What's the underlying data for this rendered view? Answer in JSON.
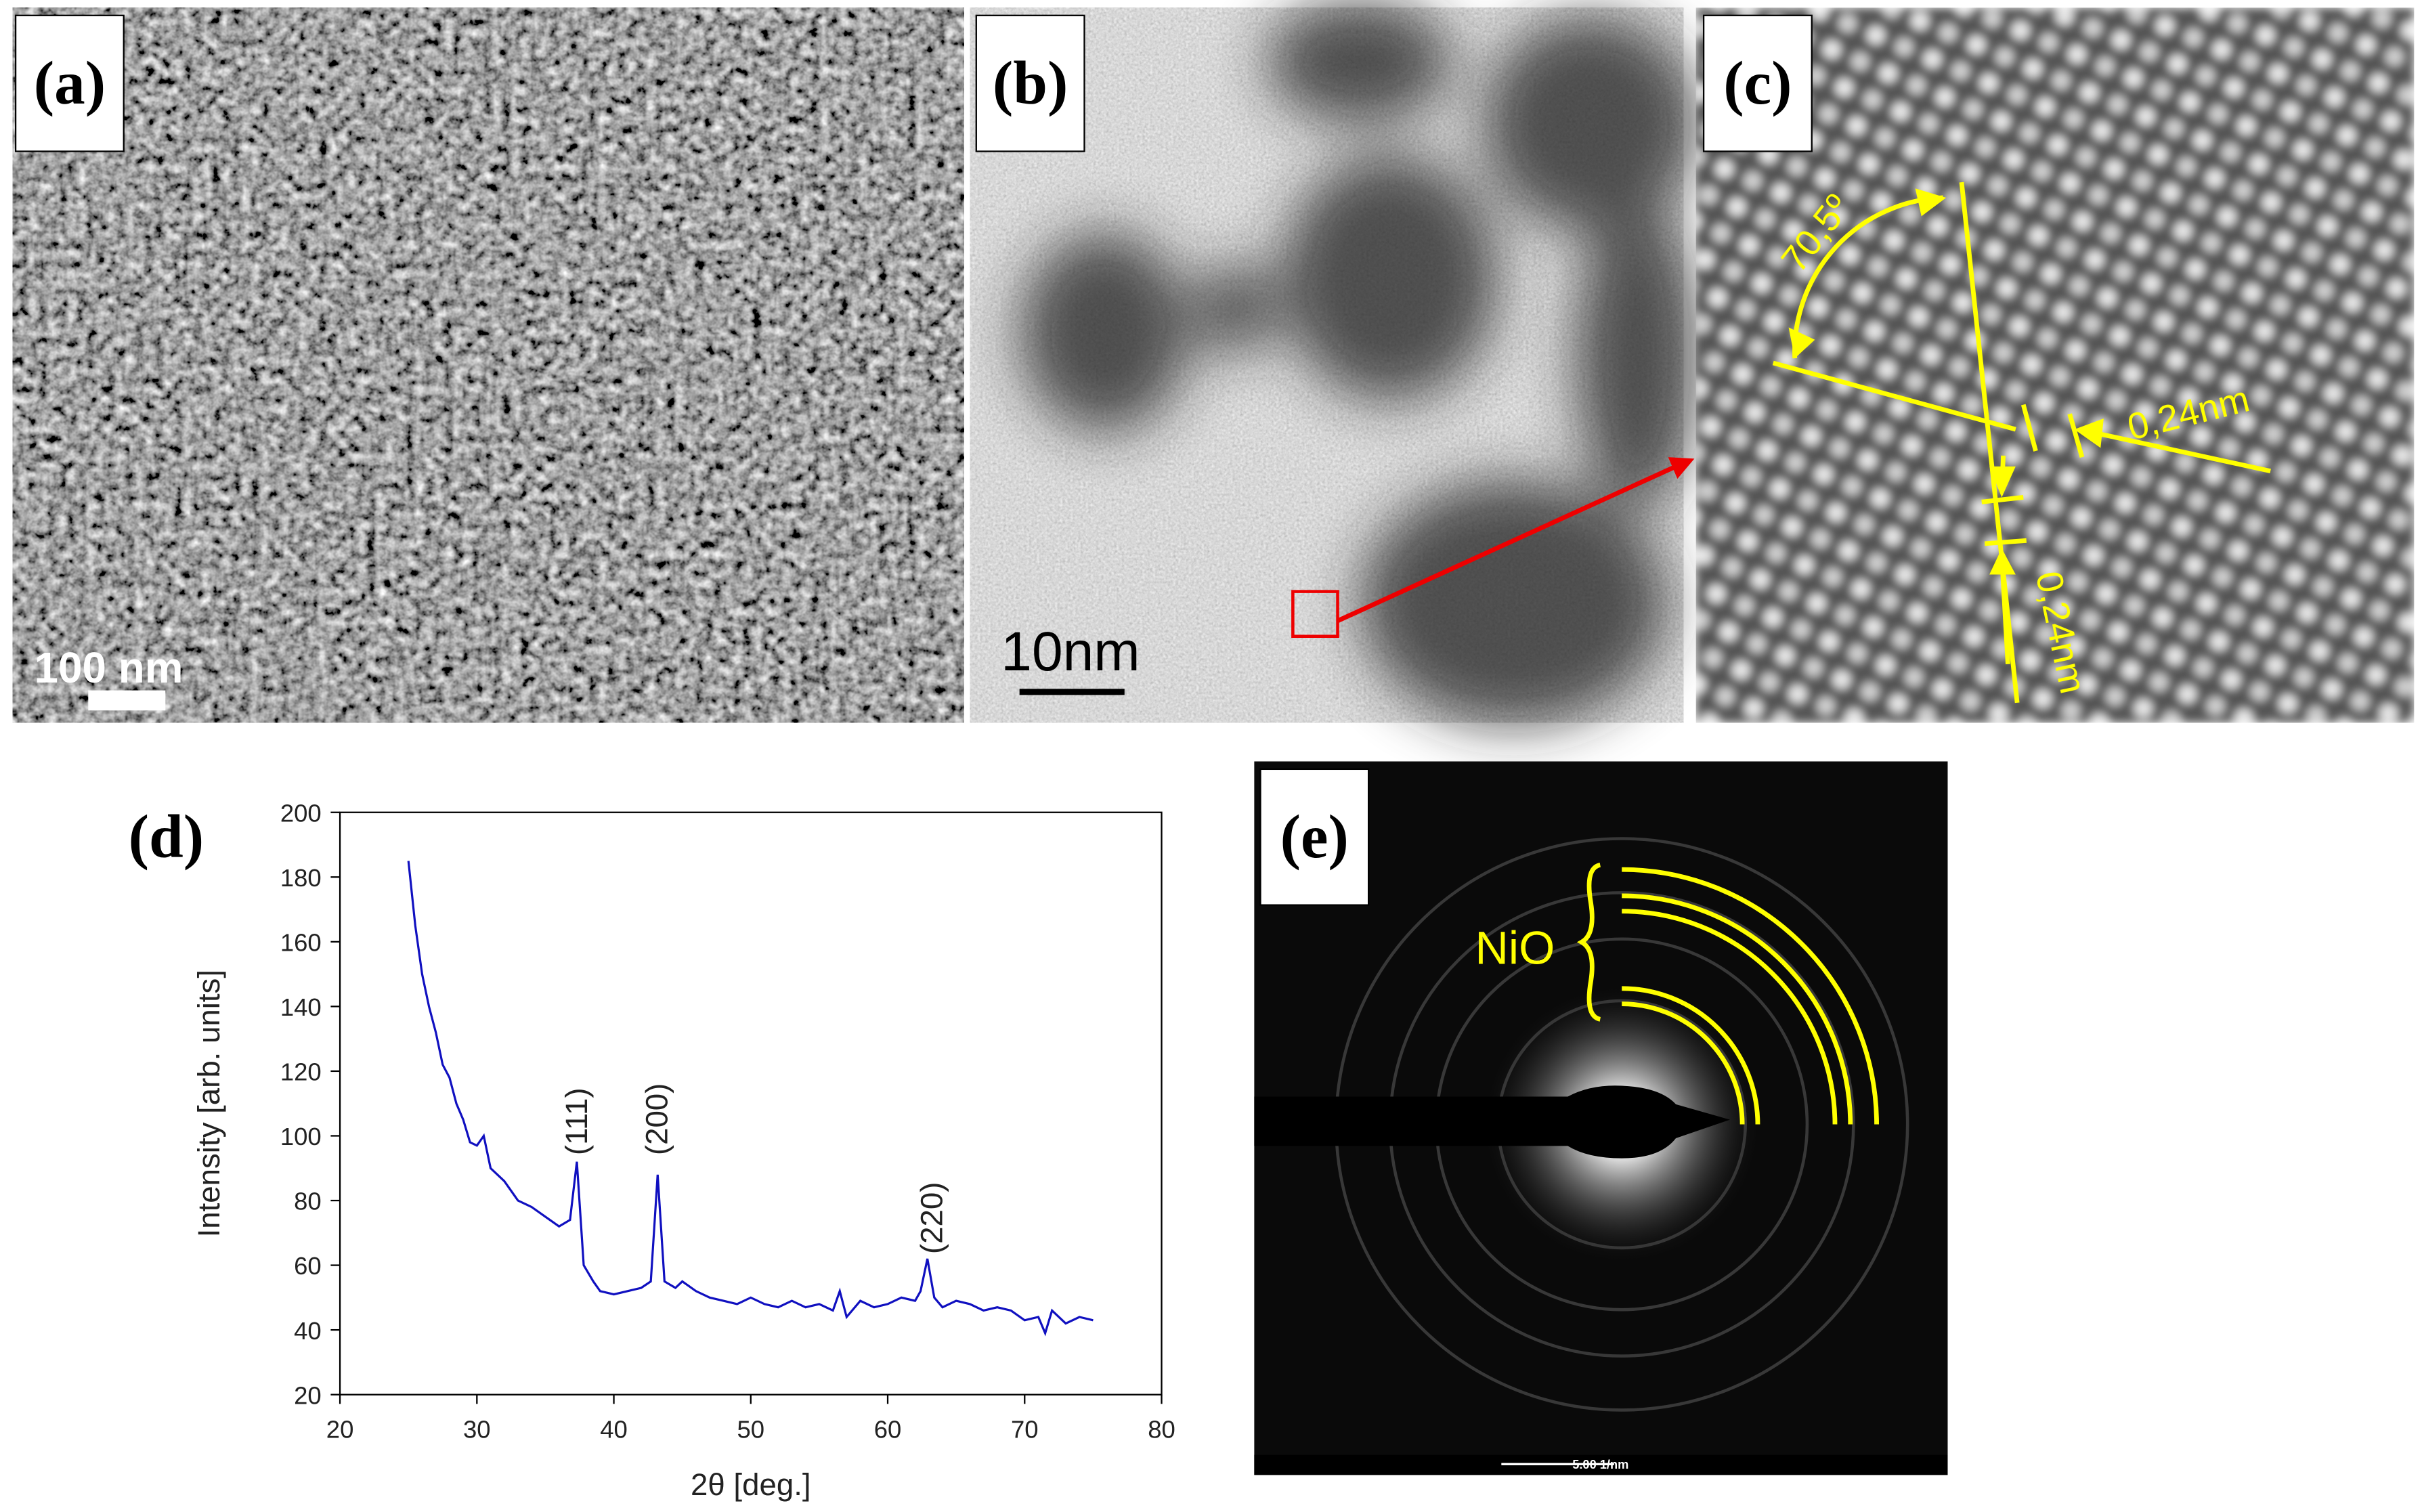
{
  "panels": [
    {
      "label": "(a)",
      "scale_bar": "100 nm"
    },
    {
      "label": "(b)",
      "scale_bar": "10nm"
    },
    {
      "label": "(c)",
      "angle": "70,5º",
      "spacing_1": "0,24nm",
      "spacing_2": "0,24nm"
    },
    {
      "label": "(d)"
    },
    {
      "label": "(e)",
      "phase": "NiO",
      "scale_bar": "5.00 1/nm"
    }
  ],
  "chart_data": {
    "type": "line",
    "xlabel": "2θ [deg.]",
    "ylabel": "Intensity [arb. units]",
    "color": "#1010c0",
    "annotations": [
      "(111)",
      "(200)",
      "(220)"
    ],
    "x": [
      25,
      25.5,
      26,
      26.5,
      27,
      27.5,
      28,
      28.5,
      29,
      29.5,
      30,
      30.5,
      31,
      32,
      33,
      34,
      35,
      36,
      36.8,
      37.3,
      37.8,
      38.5,
      39,
      40,
      41,
      42,
      42.7,
      43.2,
      43.7,
      44.5,
      45,
      46,
      47,
      48,
      49,
      50,
      51,
      52,
      53,
      54,
      55,
      56,
      56.5,
      57,
      58,
      59,
      60,
      61,
      62,
      62.4,
      62.9,
      63.4,
      64,
      65,
      66,
      67,
      68,
      69,
      70,
      71,
      71.5,
      72,
      73,
      74,
      75
    ],
    "values": [
      185,
      165,
      150,
      140,
      132,
      122,
      118,
      110,
      105,
      98,
      97,
      100,
      90,
      86,
      80,
      78,
      75,
      72,
      74,
      92,
      60,
      55,
      52,
      51,
      52,
      53,
      55,
      88,
      55,
      53,
      55,
      52,
      50,
      49,
      48,
      50,
      48,
      47,
      49,
      47,
      48,
      46,
      52,
      44,
      49,
      47,
      48,
      50,
      49,
      52,
      62,
      50,
      47,
      49,
      48,
      46,
      47,
      46,
      43,
      44,
      39,
      46,
      42,
      44,
      43
    ],
    "xlim": [
      20,
      80
    ],
    "xticks": [
      20,
      30,
      40,
      50,
      60,
      70,
      80
    ],
    "ylim": [
      20,
      200
    ],
    "yticks": [
      20,
      40,
      60,
      80,
      100,
      120,
      140,
      160,
      180,
      200
    ]
  }
}
